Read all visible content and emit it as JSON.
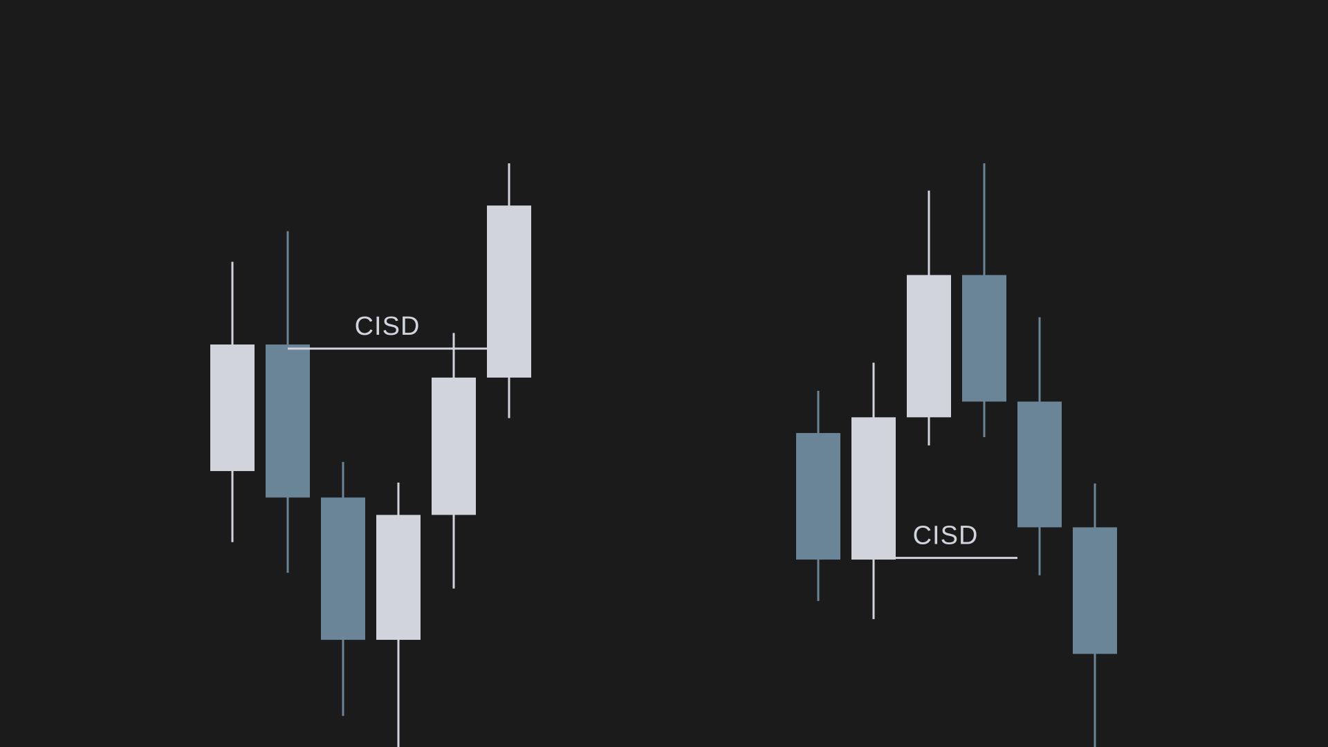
{
  "colors": {
    "background": "#1b1b1c",
    "bullish": "#d1d4dd",
    "bearish": "#6a8597"
  },
  "chart_data": [
    {
      "type": "candlestick",
      "title": "",
      "grid": false,
      "annotation": {
        "text": "CISD",
        "level": 91.3,
        "from_candle": 1,
        "to_candle": 5
      },
      "candles": [
        {
          "direction": "bullish",
          "open": 76.5,
          "high": 101.8,
          "low": 67.9,
          "close": 91.8
        },
        {
          "direction": "bearish",
          "open": 91.8,
          "high": 105.5,
          "low": 64.2,
          "close": 73.3
        },
        {
          "direction": "bearish",
          "open": 73.3,
          "high": 77.6,
          "low": 46.9,
          "close": 56.1
        },
        {
          "direction": "bullish",
          "open": 56.1,
          "high": 75.1,
          "low": 42.9,
          "close": 71.2
        },
        {
          "direction": "bullish",
          "open": 71.2,
          "high": 93.2,
          "low": 62.3,
          "close": 87.8
        },
        {
          "direction": "bullish",
          "open": 87.8,
          "high": 113.7,
          "low": 82.9,
          "close": 108.6
        }
      ]
    },
    {
      "type": "candlestick",
      "title": "",
      "grid": false,
      "annotation": {
        "text": "CISD",
        "level": 66.0,
        "from_candle": 1,
        "to_candle": 4
      },
      "candles": [
        {
          "direction": "bearish",
          "open": 81.1,
          "high": 86.2,
          "low": 60.8,
          "close": 65.8
        },
        {
          "direction": "bullish",
          "open": 65.8,
          "high": 89.6,
          "low": 58.6,
          "close": 83.0
        },
        {
          "direction": "bullish",
          "open": 83.0,
          "high": 110.4,
          "low": 79.6,
          "close": 100.2
        },
        {
          "direction": "bearish",
          "open": 100.2,
          "high": 113.7,
          "low": 80.6,
          "close": 84.9
        },
        {
          "direction": "bearish",
          "open": 84.9,
          "high": 95.1,
          "low": 63.9,
          "close": 69.7
        },
        {
          "direction": "bearish",
          "open": 69.7,
          "high": 75.0,
          "low": 42.9,
          "close": 54.4
        }
      ]
    }
  ]
}
